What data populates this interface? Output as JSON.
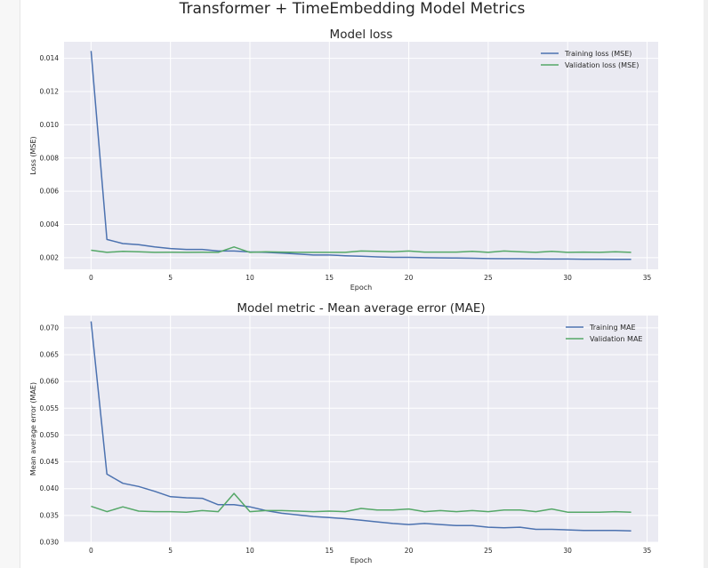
{
  "figure": {
    "title": "Transformer + TimeEmbedding Model Metrics"
  },
  "colors": {
    "plot_background": "#eaeaf2",
    "grid": "#ffffff",
    "training": "#4c72b0",
    "validation": "#55a868"
  },
  "chart_data": [
    {
      "type": "line",
      "title": "Model loss",
      "xlabel": "Epoch",
      "ylabel": "Loss (MSE)",
      "xlim": [
        -1.7,
        35.7
      ],
      "ylim": [
        0.0013,
        0.015
      ],
      "xticks": [
        0,
        5,
        10,
        15,
        20,
        25,
        30,
        35
      ],
      "xtick_labels": [
        "0",
        "5",
        "10",
        "15",
        "20",
        "25",
        "30",
        "35"
      ],
      "yticks": [
        0.002,
        0.004,
        0.006,
        0.008,
        0.01,
        0.012,
        0.014
      ],
      "ytick_labels": [
        "0.002",
        "0.004",
        "0.006",
        "0.008",
        "0.010",
        "0.012",
        "0.014"
      ],
      "grid": true,
      "legend_position": "top-right",
      "x": [
        0,
        1,
        2,
        3,
        4,
        5,
        6,
        7,
        8,
        9,
        10,
        11,
        12,
        13,
        14,
        15,
        16,
        17,
        18,
        19,
        20,
        21,
        22,
        23,
        24,
        25,
        26,
        27,
        28,
        29,
        30,
        31,
        32,
        33,
        34
      ],
      "series": [
        {
          "name": "Training loss (MSE)",
          "color": "#4c72b0",
          "values": [
            0.01445,
            0.0031,
            0.00285,
            0.00278,
            0.00265,
            0.00255,
            0.0025,
            0.0025,
            0.0024,
            0.0024,
            0.00235,
            0.00232,
            0.00228,
            0.00222,
            0.00216,
            0.00216,
            0.00212,
            0.00209,
            0.00205,
            0.00202,
            0.00202,
            0.002,
            0.00199,
            0.00198,
            0.00197,
            0.00195,
            0.00194,
            0.00194,
            0.00193,
            0.00192,
            0.00192,
            0.00191,
            0.00191,
            0.0019,
            0.0019
          ]
        },
        {
          "name": "Validation loss (MSE)",
          "color": "#55a868",
          "values": [
            0.00245,
            0.00232,
            0.00238,
            0.00236,
            0.00232,
            0.00233,
            0.00232,
            0.00233,
            0.00232,
            0.00265,
            0.00232,
            0.00236,
            0.00234,
            0.00232,
            0.00232,
            0.00232,
            0.00232,
            0.0024,
            0.00238,
            0.00236,
            0.0024,
            0.00234,
            0.00234,
            0.00234,
            0.00238,
            0.00232,
            0.0024,
            0.00236,
            0.00232,
            0.00238,
            0.00232,
            0.00234,
            0.00232,
            0.00236,
            0.00232
          ]
        }
      ]
    },
    {
      "type": "line",
      "title": "Model metric - Mean average error (MAE)",
      "xlabel": "Epoch",
      "ylabel": "Mean average error (MAE)",
      "xlim": [
        -1.7,
        35.7
      ],
      "ylim": [
        0.03,
        0.0723
      ],
      "xticks": [
        0,
        5,
        10,
        15,
        20,
        25,
        30,
        35
      ],
      "xtick_labels": [
        "0",
        "5",
        "10",
        "15",
        "20",
        "25",
        "30",
        "35"
      ],
      "yticks": [
        0.03,
        0.035,
        0.04,
        0.045,
        0.05,
        0.055,
        0.06,
        0.065,
        0.07
      ],
      "ytick_labels": [
        "0.030",
        "0.035",
        "0.040",
        "0.045",
        "0.050",
        "0.055",
        "0.060",
        "0.065",
        "0.070"
      ],
      "grid": true,
      "legend_position": "top-right",
      "x": [
        0,
        1,
        2,
        3,
        4,
        5,
        6,
        7,
        8,
        9,
        10,
        11,
        12,
        13,
        14,
        15,
        16,
        17,
        18,
        19,
        20,
        21,
        22,
        23,
        24,
        25,
        26,
        27,
        28,
        29,
        30,
        31,
        32,
        33,
        34
      ],
      "series": [
        {
          "name": "Training MAE",
          "color": "#4c72b0",
          "values": [
            0.0712,
            0.0427,
            0.041,
            0.0404,
            0.0395,
            0.0385,
            0.0383,
            0.0382,
            0.037,
            0.037,
            0.0366,
            0.0359,
            0.0354,
            0.0351,
            0.0348,
            0.0346,
            0.0344,
            0.0341,
            0.0338,
            0.0335,
            0.0333,
            0.0335,
            0.0333,
            0.0331,
            0.0331,
            0.0328,
            0.0327,
            0.0328,
            0.0324,
            0.0324,
            0.0323,
            0.0322,
            0.0322,
            0.0322,
            0.0321
          ]
        },
        {
          "name": "Validation MAE",
          "color": "#55a868",
          "values": [
            0.0367,
            0.0357,
            0.0366,
            0.0358,
            0.0357,
            0.0357,
            0.0356,
            0.0359,
            0.0357,
            0.0391,
            0.0357,
            0.0359,
            0.0359,
            0.0358,
            0.0357,
            0.0358,
            0.0357,
            0.0363,
            0.036,
            0.036,
            0.0362,
            0.0357,
            0.0359,
            0.0357,
            0.0359,
            0.0357,
            0.036,
            0.036,
            0.0357,
            0.0362,
            0.0356,
            0.0356,
            0.0356,
            0.0357,
            0.0356
          ]
        }
      ]
    }
  ]
}
